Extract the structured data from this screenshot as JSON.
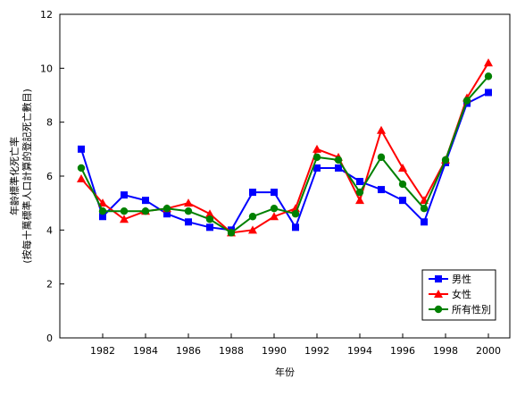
{
  "chart_data": {
    "type": "line",
    "xlabel": "年份",
    "ylabel_line1": "年齡標準化死亡率",
    "ylabel_line2": "(按每十萬標準人口計算的登記死亡數目)",
    "x": [
      1981,
      1982,
      1983,
      1984,
      1985,
      1986,
      1987,
      1988,
      1989,
      1990,
      1991,
      1992,
      1993,
      1994,
      1995,
      1996,
      1997,
      1998,
      1999,
      2000
    ],
    "xticks": [
      "1982",
      "1984",
      "1986",
      "1988",
      "1990",
      "1992",
      "1994",
      "1996",
      "1998",
      "2000"
    ],
    "yticks": [
      "0",
      "2",
      "4",
      "6",
      "8",
      "10",
      "12"
    ],
    "xlim": [
      1980,
      2001
    ],
    "ylim": [
      0,
      12
    ],
    "legend_position": "bottom-right",
    "series": [
      {
        "name": "男性",
        "color": "#0000ff",
        "marker": "square",
        "values": [
          7.0,
          4.5,
          5.3,
          5.1,
          4.6,
          4.3,
          4.1,
          4.0,
          5.4,
          5.4,
          4.1,
          6.3,
          6.3,
          5.8,
          5.5,
          5.1,
          4.3,
          6.5,
          8.7,
          9.1
        ]
      },
      {
        "name": "女性",
        "color": "#ff0000",
        "marker": "triangle",
        "values": [
          5.9,
          5.0,
          4.4,
          4.7,
          4.8,
          5.0,
          4.6,
          3.9,
          4.0,
          4.5,
          4.8,
          7.0,
          6.7,
          5.1,
          7.7,
          6.3,
          5.1,
          6.6,
          8.9,
          10.2
        ]
      },
      {
        "name": "所有性別",
        "color": "#008000",
        "marker": "circle",
        "values": [
          6.3,
          4.7,
          4.7,
          4.7,
          4.8,
          4.7,
          4.4,
          3.9,
          4.5,
          4.8,
          4.6,
          6.7,
          6.6,
          5.4,
          6.7,
          5.7,
          4.8,
          6.6,
          8.8,
          9.7
        ]
      }
    ]
  }
}
